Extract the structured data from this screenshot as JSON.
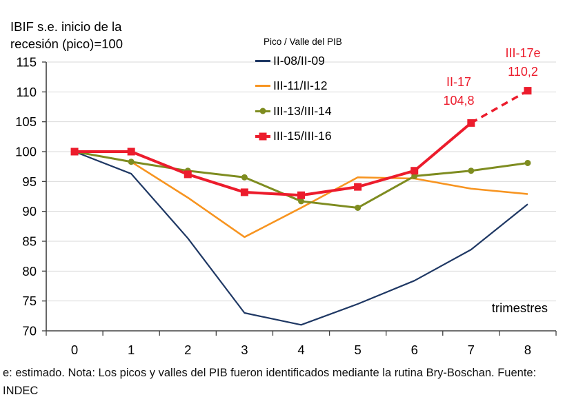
{
  "header": {
    "title_line1": "IBIF s.e. inicio de la",
    "title_line2": "recesión (pico)=100"
  },
  "legend": {
    "title": "Pico / Valle del PIB",
    "items": [
      {
        "label": "II-08/II-09",
        "color": "#1F3864",
        "marker": "none"
      },
      {
        "label": "III-11/II-12",
        "color": "#F79420",
        "marker": "none"
      },
      {
        "label": "III-13/III-14",
        "color": "#7E8C20",
        "marker": "circle"
      },
      {
        "label": "III-15/III-16",
        "color": "#EC1C2C",
        "marker": "square"
      }
    ]
  },
  "annotations": [
    {
      "label": "II-17",
      "value": "104,8"
    },
    {
      "label": "III-17e",
      "value": "110,2"
    }
  ],
  "axis": {
    "x_label": "trimestres"
  },
  "footer": {
    "text": "e: estimado. Nota: Los picos y valles del PIB fueron identificados mediante la rutina Bry-Boschan. Fuente: INDEC"
  },
  "colors": {
    "grid": "#D9D9D9",
    "axis": "#404040",
    "tick_label": "#000000",
    "annotation": "#EC1C2C"
  },
  "chart_data": {
    "type": "line",
    "title": "IBIF s.e. inicio de la recesión (pico)=100",
    "xlabel": "trimestres",
    "ylabel": "",
    "x": [
      0,
      1,
      2,
      3,
      4,
      5,
      6,
      7,
      8
    ],
    "xticks": [
      "0",
      "1",
      "2",
      "3",
      "4",
      "5",
      "6",
      "7",
      "8"
    ],
    "yticks": [
      70,
      75,
      80,
      85,
      90,
      95,
      100,
      105,
      110,
      115
    ],
    "ylim": [
      70,
      115
    ],
    "grid": true,
    "legend_position": "top-center",
    "legend_title": "Pico / Valle del PIB",
    "series": [
      {
        "name": "II-08/II-09",
        "color": "#1F3864",
        "marker": "none",
        "values": [
          100,
          96.3,
          85.5,
          73.0,
          71.0,
          74.5,
          78.4,
          83.6,
          91.2
        ]
      },
      {
        "name": "III-11/II-12",
        "color": "#F79420",
        "marker": "none",
        "values": [
          100,
          98.3,
          92.3,
          85.7,
          90.6,
          95.7,
          95.5,
          93.8,
          92.9
        ]
      },
      {
        "name": "III-13/III-14",
        "color": "#7E8C20",
        "marker": "circle",
        "values": [
          100,
          98.3,
          96.8,
          95.7,
          91.7,
          90.6,
          95.9,
          96.8,
          98.1
        ]
      },
      {
        "name": "III-15/III-16",
        "color": "#EC1C2C",
        "marker": "square",
        "values": [
          100,
          100,
          96.2,
          93.2,
          92.7,
          94.1,
          96.8,
          104.8,
          110.2
        ],
        "dashed_from_index": 7,
        "point_labels": [
          {
            "index": 7,
            "label": "II-17",
            "value": "104,8"
          },
          {
            "index": 8,
            "label": "III-17e",
            "value": "110,2"
          }
        ]
      }
    ]
  }
}
